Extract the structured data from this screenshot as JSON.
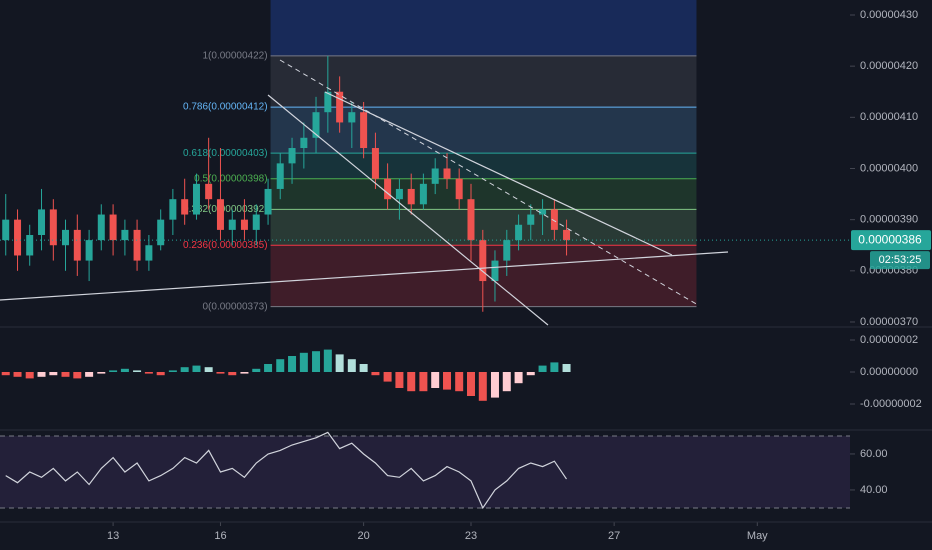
{
  "chart_data": [
    {
      "type": "candlestick",
      "x": [
        10,
        10.33,
        10.67,
        11,
        11.33,
        11.67,
        12,
        12.33,
        12.67,
        13,
        13.33,
        13.67,
        14,
        14.33,
        14.67,
        15,
        15.33,
        15.67,
        16,
        16.33,
        16.67,
        17,
        17.33,
        17.67,
        18,
        18.33,
        18.67,
        19,
        19.33,
        19.67,
        20,
        20.33,
        20.67,
        21,
        21.33,
        21.67,
        22,
        22.33,
        22.67,
        23,
        23.33,
        23.67,
        24,
        24.33,
        24.67,
        25,
        25.33,
        25.67
      ],
      "open": [
        3.86e-06,
        3.9e-06,
        3.83e-06,
        3.87e-06,
        3.92e-06,
        3.85e-06,
        3.88e-06,
        3.82e-06,
        3.86e-06,
        3.91e-06,
        3.86e-06,
        3.88e-06,
        3.82e-06,
        3.85e-06,
        3.9e-06,
        3.94e-06,
        3.91e-06,
        3.97e-06,
        3.94e-06,
        3.88e-06,
        3.9e-06,
        3.88e-06,
        3.91e-06,
        3.96e-06,
        4.01e-06,
        4.04e-06,
        4.06e-06,
        4.11e-06,
        4.15e-06,
        4.09e-06,
        4.11e-06,
        4.04e-06,
        3.98e-06,
        3.94e-06,
        3.96e-06,
        3.93e-06,
        3.97e-06,
        4e-06,
        3.98e-06,
        3.94e-06,
        3.86e-06,
        3.78e-06,
        3.82e-06,
        3.86e-06,
        3.89e-06,
        3.91e-06,
        3.92e-06,
        3.88e-06
      ],
      "high": [
        3.95e-06,
        3.92e-06,
        3.89e-06,
        3.96e-06,
        3.94e-06,
        3.9e-06,
        3.91e-06,
        3.88e-06,
        3.93e-06,
        3.93e-06,
        3.9e-06,
        3.9e-06,
        3.87e-06,
        3.92e-06,
        3.96e-06,
        3.98e-06,
        3.99e-06,
        4.06e-06,
        4.04e-06,
        3.92e-06,
        3.94e-06,
        3.93e-06,
        3.98e-06,
        4.03e-06,
        4.06e-06,
        4.09e-06,
        4.14e-06,
        4.22e-06,
        4.18e-06,
        4.13e-06,
        4.13e-06,
        4.07e-06,
        4.01e-06,
        3.98e-06,
        3.99e-06,
        3.99e-06,
        4.02e-06,
        4.03e-06,
        4e-06,
        3.97e-06,
        3.88e-06,
        3.84e-06,
        3.88e-06,
        3.91e-06,
        3.93e-06,
        3.94e-06,
        3.94e-06,
        3.9e-06
      ],
      "low": [
        3.83e-06,
        3.8e-06,
        3.81e-06,
        3.84e-06,
        3.82e-06,
        3.8e-06,
        3.79e-06,
        3.78e-06,
        3.84e-06,
        3.83e-06,
        3.83e-06,
        3.8e-06,
        3.8e-06,
        3.84e-06,
        3.87e-06,
        3.89e-06,
        3.9e-06,
        3.92e-06,
        3.86e-06,
        3.85e-06,
        3.86e-06,
        3.85e-06,
        3.89e-06,
        3.94e-06,
        3.97e-06,
        4e-06,
        4.03e-06,
        4.07e-06,
        4.07e-06,
        4.04e-06,
        4.02e-06,
        3.96e-06,
        3.92e-06,
        3.9e-06,
        3.91e-06,
        3.92e-06,
        3.95e-06,
        3.96e-06,
        3.92e-06,
        3.82e-06,
        3.72e-06,
        3.74e-06,
        3.79e-06,
        3.84e-06,
        3.86e-06,
        3.87e-06,
        3.86e-06,
        3.83e-06
      ],
      "close": [
        3.9e-06,
        3.83e-06,
        3.87e-06,
        3.92e-06,
        3.85e-06,
        3.88e-06,
        3.82e-06,
        3.86e-06,
        3.91e-06,
        3.86e-06,
        3.88e-06,
        3.82e-06,
        3.85e-06,
        3.9e-06,
        3.94e-06,
        3.91e-06,
        3.97e-06,
        3.94e-06,
        3.88e-06,
        3.9e-06,
        3.88e-06,
        3.91e-06,
        3.96e-06,
        4.01e-06,
        4.04e-06,
        4.06e-06,
        4.11e-06,
        4.15e-06,
        4.09e-06,
        4.11e-06,
        4.04e-06,
        3.98e-06,
        3.94e-06,
        3.96e-06,
        3.93e-06,
        3.97e-06,
        4e-06,
        3.98e-06,
        3.94e-06,
        3.86e-06,
        3.78e-06,
        3.82e-06,
        3.86e-06,
        3.89e-06,
        3.91e-06,
        3.92e-06,
        3.88e-06,
        3.86e-06
      ],
      "up_color": "#26a69a",
      "down_color": "#ef5350",
      "xlim": [
        9.84,
        33.59
      ],
      "xticks": [
        {
          "value": 13,
          "label": "13"
        },
        {
          "value": 16,
          "label": "16"
        },
        {
          "value": 20,
          "label": "20"
        },
        {
          "value": 23,
          "label": "23"
        },
        {
          "value": 27,
          "label": "27"
        },
        {
          "value": 31,
          "label": "May"
        }
      ],
      "ylim": [
        3.6941e-06,
        4.3293e-06
      ],
      "yticks": [
        {
          "value": 4.3e-06,
          "label": "0.00000430"
        },
        {
          "value": 4.2e-06,
          "label": "0.00000420"
        },
        {
          "value": 4.1e-06,
          "label": "0.00000410"
        },
        {
          "value": 4e-06,
          "label": "0.00000400"
        },
        {
          "value": 3.9e-06,
          "label": "0.00000390"
        },
        {
          "value": 3.8e-06,
          "label": "0.00000380"
        },
        {
          "value": 3.7e-06,
          "label": "0.00000370"
        }
      ],
      "last_price": {
        "value": 3.86e-06,
        "label": "0.00000386",
        "color": "#26a69a"
      },
      "countdown": "02:53:25",
      "fib": {
        "x_range": [
          17.4,
          29.3
        ],
        "extension_color": "#2962ff",
        "levels": [
          {
            "value": 4.22e-06,
            "label": "1(0.00000422)",
            "color": "#787b86"
          },
          {
            "value": 4.12e-06,
            "label": "0.786(0.00000412)",
            "color": "#64b5f6"
          },
          {
            "value": 4.03e-06,
            "label": "0.618(0.00000403)",
            "color": "#26a69a"
          },
          {
            "value": 3.98e-06,
            "label": "0.5(0.00000398)",
            "color": "#4caf50"
          },
          {
            "value": 3.92e-06,
            "label": "0.382(0.00000392)",
            "color": "#81c784"
          },
          {
            "value": 3.85e-06,
            "label": "0.236(0.00000385)",
            "color": "#f23645"
          },
          {
            "value": 3.73e-06,
            "label": "0(0.00000373)",
            "color": "#787b86"
          }
        ]
      }
    },
    {
      "type": "bar",
      "values": [
        -2e-09,
        -3e-09,
        -4e-09,
        -3e-09,
        -2e-09,
        -3e-09,
        -4e-09,
        -3e-09,
        -1e-09,
        1e-09,
        2e-09,
        1e-09,
        -1e-09,
        -2e-09,
        1e-09,
        3e-09,
        4e-09,
        3e-09,
        -1e-09,
        -2e-09,
        -1e-09,
        2e-09,
        5e-09,
        8e-09,
        1e-08,
        1.2e-08,
        1.3e-08,
        1.4e-08,
        1.1e-08,
        8e-09,
        5e-09,
        -2e-09,
        -6e-09,
        -1e-08,
        -1.2e-08,
        -1.2e-08,
        -1e-08,
        -1.1e-08,
        -1.2e-08,
        -1.5e-08,
        -1.8e-08,
        -1.6e-08,
        -1.2e-08,
        -7e-09,
        -2e-09,
        4e-09,
        6e-09,
        5e-09
      ],
      "colors": {
        "rising_up": "#26a69a",
        "falling_up": "#b2dfdb",
        "falling_down": "#ef5350",
        "rising_down": "#ffcdd2"
      },
      "ylim": [
        -3.5e-08,
        2.75e-08
      ],
      "yticks": [
        {
          "value": 2e-08,
          "label": "0.00000002"
        },
        {
          "value": 0,
          "label": "0.00000000"
        },
        {
          "value": -2e-08,
          "label": "-0.00000002"
        }
      ]
    },
    {
      "type": "line",
      "values": [
        48,
        44,
        50,
        47,
        52,
        45,
        50,
        43,
        52,
        58,
        50,
        55,
        45,
        48,
        52,
        58,
        55,
        62,
        50,
        52,
        47,
        55,
        60,
        62,
        65,
        67,
        69,
        72,
        63,
        66,
        60,
        55,
        48,
        47,
        52,
        45,
        48,
        53,
        50,
        45,
        30,
        40,
        45,
        52,
        55,
        53,
        56,
        46
      ],
      "color": "#d1d4dc",
      "band_color": "#7e57c2",
      "bands": [
        30,
        70
      ],
      "ylim": [
        23.3,
        72.2
      ],
      "yticks": [
        {
          "value": 60,
          "label": "60.00"
        },
        {
          "value": 40,
          "label": "40.00"
        }
      ]
    }
  ]
}
